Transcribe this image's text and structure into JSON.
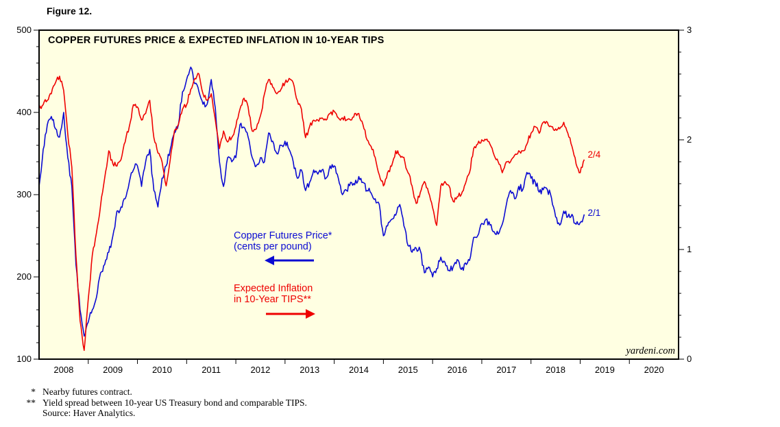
{
  "figure_label": "Figure 12.",
  "title": "COPPER FUTURES PRICE & EXPECTED INFLATION IN 10-YEAR TIPS",
  "watermark": "yardeni.com",
  "annotations": {
    "copper_label_line1": "Copper Futures Price*",
    "copper_label_line2": "(cents per pound)",
    "inflation_label_line1": "Expected Inflation",
    "inflation_label_line2": "in 10-Year TIPS**",
    "copper_end_label": "2/1",
    "inflation_end_label": "2/4"
  },
  "footnotes": [
    {
      "marker": "*",
      "text": "Nearby futures contract."
    },
    {
      "marker": "**",
      "text": "Yield spread between 10-year US Treasury bond and comparable TIPS."
    },
    {
      "marker": "",
      "text": "Source: Haver Analytics."
    }
  ],
  "colors": {
    "copper": "#0a0ad2",
    "inflation": "#ee0000",
    "plot_bg": "#ffffe2",
    "border": "#000000"
  },
  "chart_data": {
    "type": "line",
    "title": "COPPER FUTURES PRICE & EXPECTED INFLATION IN 10-YEAR TIPS",
    "grid": false,
    "legend_position": "inside-center",
    "frequency": "monthly",
    "start": "2008-01",
    "end": "2019-02",
    "x_start_year": 2008,
    "x_end_year": 2021,
    "x_tick_years": [
      2008,
      2009,
      2010,
      2011,
      2012,
      2013,
      2014,
      2015,
      2016,
      2017,
      2018,
      2019,
      2020
    ],
    "left_axis": {
      "label": "Copper Futures Price (cents per pound)",
      "range": [
        100,
        500
      ],
      "ticks": [
        100,
        200,
        300,
        400,
        500
      ]
    },
    "right_axis": {
      "label": "Expected Inflation in 10-Year TIPS (percent)",
      "range": [
        0,
        3
      ],
      "ticks": [
        0,
        1,
        2,
        3
      ]
    },
    "series": [
      {
        "name": "Copper Futures Price (cents per pound)",
        "axis": "left",
        "color": "#0a0ad2",
        "end_label": "2/1",
        "values": [
          310,
          355,
          385,
          395,
          380,
          370,
          400,
          345,
          310,
          215,
          160,
          128,
          145,
          160,
          175,
          205,
          215,
          230,
          250,
          280,
          285,
          295,
          315,
          330,
          335,
          310,
          340,
          355,
          305,
          285,
          320,
          335,
          355,
          375,
          385,
          425,
          440,
          455,
          435,
          425,
          410,
          410,
          440,
          405,
          340,
          310,
          345,
          340,
          345,
          385,
          382,
          370,
          345,
          335,
          345,
          340,
          375,
          365,
          350,
          360,
          365,
          355,
          340,
          320,
          330,
          305,
          315,
          330,
          325,
          330,
          320,
          335,
          335,
          320,
          300,
          305,
          315,
          312,
          322,
          315,
          305,
          302,
          295,
          288,
          250,
          262,
          270,
          275,
          288,
          262,
          238,
          230,
          235,
          232,
          205,
          212,
          200,
          210,
          224,
          218,
          208,
          212,
          221,
          209,
          217,
          220,
          248,
          250,
          265,
          270,
          263,
          255,
          252,
          264,
          288,
          305,
          295,
          310,
          306,
          327,
          320,
          316,
          303,
          306,
          306,
          296,
          273,
          263,
          280,
          273,
          276,
          264,
          266,
          276
        ]
      },
      {
        "name": "Expected Inflation in 10-Year TIPS (percent)",
        "axis": "right",
        "color": "#ee0000",
        "end_label": "2/4",
        "values": [
          2.28,
          2.32,
          2.36,
          2.42,
          2.52,
          2.58,
          2.45,
          2.05,
          1.75,
          0.95,
          0.35,
          0.08,
          0.55,
          0.95,
          1.15,
          1.4,
          1.65,
          1.9,
          1.78,
          1.76,
          1.82,
          1.98,
          2.12,
          2.32,
          2.3,
          2.18,
          2.24,
          2.36,
          2.02,
          1.88,
          1.8,
          1.58,
          1.82,
          2.08,
          2.14,
          2.28,
          2.32,
          2.46,
          2.56,
          2.6,
          2.42,
          2.36,
          2.42,
          2.18,
          1.92,
          2.08,
          1.98,
          2.02,
          2.12,
          2.28,
          2.38,
          2.3,
          2.08,
          2.1,
          2.22,
          2.42,
          2.55,
          2.48,
          2.42,
          2.46,
          2.52,
          2.56,
          2.52,
          2.36,
          2.28,
          2.02,
          2.12,
          2.18,
          2.18,
          2.2,
          2.18,
          2.24,
          2.26,
          2.2,
          2.2,
          2.18,
          2.18,
          2.24,
          2.24,
          2.14,
          2.0,
          1.94,
          1.84,
          1.68,
          1.58,
          1.7,
          1.76,
          1.9,
          1.86,
          1.84,
          1.7,
          1.58,
          1.42,
          1.52,
          1.62,
          1.52,
          1.38,
          1.22,
          1.58,
          1.62,
          1.58,
          1.44,
          1.48,
          1.5,
          1.6,
          1.7,
          1.92,
          1.96,
          2.0,
          2.0,
          1.96,
          1.86,
          1.8,
          1.7,
          1.8,
          1.8,
          1.86,
          1.9,
          1.9,
          1.96,
          2.06,
          2.12,
          2.06,
          2.16,
          2.16,
          2.12,
          2.1,
          2.1,
          2.16,
          2.06,
          1.94,
          1.78,
          1.7,
          1.82
        ]
      }
    ]
  }
}
